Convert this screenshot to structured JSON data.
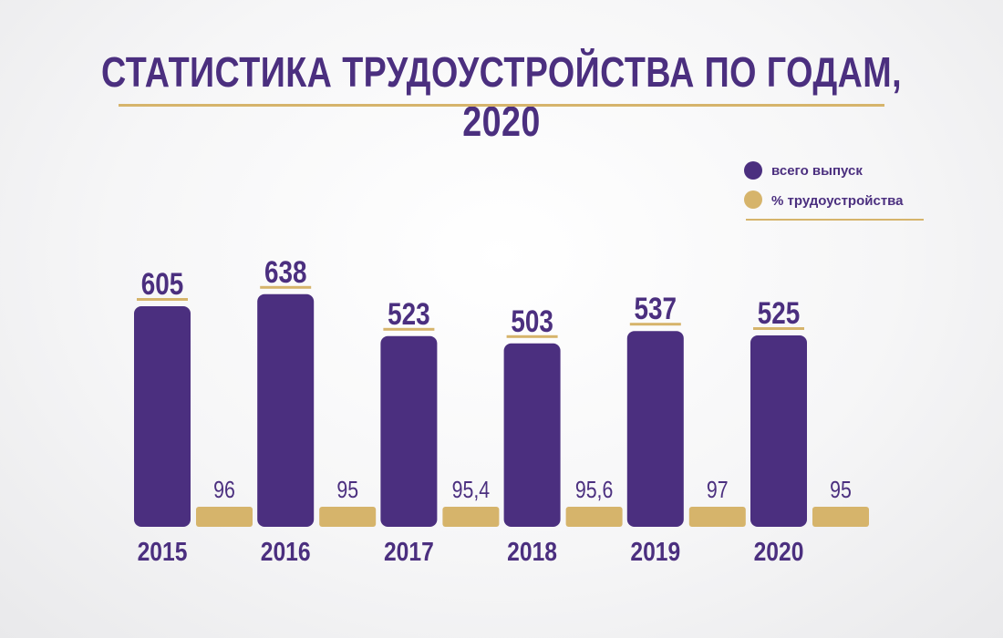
{
  "title": "СТАТИСТИКА ТРУДОУСТРОЙСТВА ПО ГОДАМ, 2020",
  "colors": {
    "total": "#4b2f7f",
    "employment": "#d6b46b"
  },
  "chart_data": {
    "type": "bar",
    "categories": [
      "2015",
      "2016",
      "2017",
      "2018",
      "2019",
      "2020"
    ],
    "series": [
      {
        "name": "всего выпуск",
        "values": [
          605,
          638,
          523,
          503,
          537,
          525
        ],
        "labels": [
          "605",
          "638",
          "523",
          "503",
          "537",
          "525"
        ]
      },
      {
        "name": "% трудоустройства",
        "values": [
          96,
          95,
          95.4,
          95.6,
          97,
          95
        ],
        "labels": [
          "96",
          "95",
          "95,4",
          "95,6",
          "97",
          "95"
        ]
      }
    ],
    "legend_position": "top-right",
    "grid": false
  }
}
